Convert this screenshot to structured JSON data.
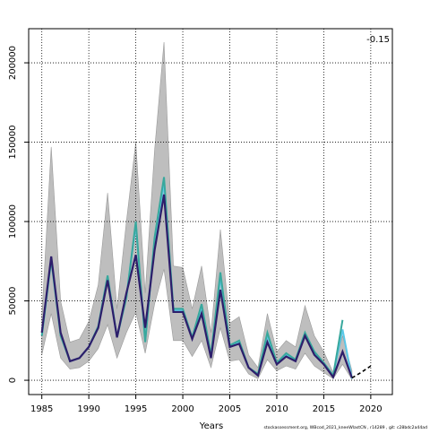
{
  "chart_data": {
    "type": "line",
    "annotation": "-0.15",
    "x_label": "Years",
    "footer": "stockassessment.org, WBcod_2021_kneeWlastCN , r14289 , git: c28bdc2a44ad",
    "x": [
      1985,
      1986,
      1987,
      1988,
      1989,
      1990,
      1991,
      1992,
      1993,
      1994,
      1995,
      1996,
      1997,
      1998,
      1999,
      2000,
      2001,
      2002,
      2003,
      2004,
      2005,
      2006,
      2007,
      2008,
      2009,
      2010,
      2011,
      2012,
      2013,
      2014,
      2015,
      2016,
      2017,
      2018,
      2019,
      2020
    ],
    "band": {
      "color": "#bebebe",
      "edge": "#9a9a9a",
      "lower": [
        16000,
        42000,
        14000,
        7000,
        8000,
        12000,
        20000,
        35000,
        14000,
        30000,
        43000,
        17000,
        48000,
        70000,
        25000,
        25000,
        15000,
        25000,
        8000,
        33000,
        12000,
        13000,
        4000,
        1000,
        13000,
        6000,
        9000,
        7000,
        17000,
        9000,
        5000,
        1000,
        10000,
        500,
        null,
        null
      ],
      "upper": [
        40000,
        147000,
        50000,
        24000,
        26000,
        37000,
        60000,
        118000,
        45000,
        100000,
        150000,
        55000,
        145000,
        213000,
        72000,
        71000,
        45000,
        72000,
        30000,
        95000,
        36000,
        40000,
        16000,
        8000,
        42000,
        18000,
        25000,
        21000,
        47000,
        28000,
        18000,
        5000,
        28000,
        6000,
        null,
        null
      ]
    },
    "series": [
      {
        "color": "#5bc8e8",
        "width": 2,
        "dash": false,
        "values": [
          28000,
          76000,
          29000,
          12000,
          14000,
          21000,
          33000,
          65000,
          27000,
          53000,
          98000,
          25000,
          88000,
          124000,
          44000,
          44000,
          27000,
          46000,
          15000,
          65000,
          22000,
          24000,
          8000,
          3500,
          28000,
          11000,
          16000,
          13000,
          29000,
          17000,
          11000,
          3000,
          32000,
          1000,
          null,
          null
        ]
      },
      {
        "color": "#38a89d",
        "width": 2,
        "dash": false,
        "values": [
          28000,
          76000,
          28000,
          12000,
          14000,
          21000,
          34000,
          66000,
          27000,
          52000,
          100000,
          24000,
          90000,
          128000,
          45000,
          45000,
          27000,
          48000,
          16000,
          68000,
          22000,
          25000,
          8000,
          4000,
          30000,
          11000,
          17000,
          13000,
          30000,
          18000,
          11000,
          3000,
          38000,
          null,
          null,
          null
        ]
      },
      {
        "color": "#2d1e6b",
        "width": 2.2,
        "dash": false,
        "values": [
          30000,
          78000,
          30000,
          12000,
          14000,
          21000,
          33000,
          63000,
          27000,
          55000,
          79000,
          33000,
          82000,
          117000,
          43000,
          43000,
          26000,
          42000,
          14000,
          57000,
          21000,
          23000,
          8000,
          3000,
          24000,
          10000,
          15000,
          12000,
          28000,
          16000,
          10000,
          2000,
          18000,
          1500,
          null,
          null
        ]
      },
      {
        "color": "#000000",
        "width": 1.6,
        "dash": true,
        "values": [
          null,
          null,
          null,
          null,
          null,
          null,
          null,
          null,
          null,
          null,
          null,
          null,
          null,
          null,
          null,
          null,
          null,
          null,
          null,
          null,
          null,
          null,
          null,
          null,
          null,
          null,
          null,
          null,
          null,
          null,
          null,
          null,
          null,
          1500,
          5000,
          9000
        ]
      }
    ],
    "xlim": [
      1983.6,
      2022.3
    ],
    "xticks": [
      1985,
      1990,
      1995,
      2000,
      2005,
      2010,
      2015,
      2020
    ],
    "ylim": [
      -9000,
      221500
    ],
    "yticks": [
      0,
      50000,
      100000,
      150000,
      200000
    ],
    "grid": true
  }
}
